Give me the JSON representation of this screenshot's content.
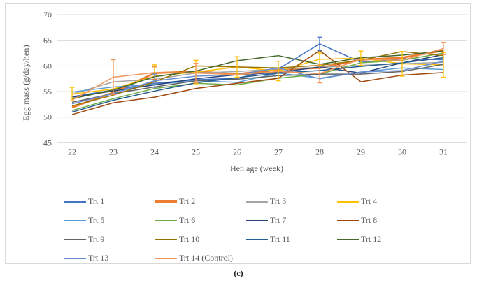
{
  "figure": {
    "caption": "(c)"
  },
  "chart_data": {
    "type": "line",
    "title": "",
    "xlabel": "Hen age (week)",
    "ylabel": "Egg mass (g/day/hen)",
    "x": [
      22,
      23,
      24,
      25,
      26,
      27,
      28,
      29,
      30,
      31
    ],
    "ylim": [
      45,
      70
    ],
    "ytick_step": 5,
    "yticks": [
      45,
      50,
      55,
      60,
      65,
      70
    ],
    "grid": "horizontal",
    "legend_position": "bottom",
    "axis_text_color": "#595959",
    "gridline_color": "#d9d9d9",
    "series": [
      {
        "name": "Trt 1",
        "color": "#4472C4",
        "thick": false,
        "values": [
          54.0,
          55.3,
          56.6,
          57.3,
          57.6,
          59.4,
          64.3,
          60.7,
          61.4,
          61.2
        ]
      },
      {
        "name": "Trt 2",
        "color": "#ED7D31",
        "thick": true,
        "values": [
          51.9,
          54.8,
          58.6,
          58.9,
          58.4,
          59.3,
          59.6,
          61.2,
          61.6,
          63.0
        ]
      },
      {
        "name": "Trt 3",
        "color": "#A5A5A5",
        "thick": false,
        "values": [
          54.5,
          56.9,
          57.4,
          58.6,
          58.9,
          59.4,
          59.7,
          60.1,
          60.4,
          60.7
        ]
      },
      {
        "name": "Trt 4",
        "color": "#FFC000",
        "thick": false,
        "values": [
          54.5,
          55.5,
          58.0,
          58.8,
          59.8,
          59.0,
          61.3,
          61.5,
          60.4,
          60.2
        ]
      },
      {
        "name": "Trt 5",
        "color": "#5B9BD5",
        "thick": false,
        "values": [
          54.9,
          55.9,
          56.4,
          57.1,
          56.8,
          58.6,
          57.6,
          58.8,
          59.6,
          59.3
        ]
      },
      {
        "name": "Trt 6",
        "color": "#70AD47",
        "thick": false,
        "values": [
          51.3,
          53.6,
          55.6,
          56.6,
          56.3,
          57.6,
          58.4,
          60.6,
          61.1,
          62.5
        ]
      },
      {
        "name": "Trt 7",
        "color": "#264478",
        "thick": false,
        "values": [
          53.9,
          55.1,
          56.3,
          57.5,
          58.3,
          58.7,
          59.8,
          58.6,
          60.6,
          62.2
        ]
      },
      {
        "name": "Trt 8",
        "color": "#9E480E",
        "thick": false,
        "values": [
          50.5,
          52.8,
          53.9,
          55.6,
          56.6,
          57.6,
          63.0,
          56.9,
          58.2,
          58.7
        ]
      },
      {
        "name": "Trt 9",
        "color": "#636363",
        "thick": false,
        "values": [
          52.9,
          54.6,
          55.9,
          57.1,
          57.4,
          58.1,
          58.4,
          58.4,
          58.9,
          60.3
        ]
      },
      {
        "name": "Trt 10",
        "color": "#997300",
        "thick": false,
        "values": [
          52.2,
          54.3,
          56.9,
          60.0,
          59.8,
          59.6,
          60.1,
          61.1,
          62.8,
          62.0
        ]
      },
      {
        "name": "Trt 11",
        "color": "#255E91",
        "thick": false,
        "values": [
          51.0,
          53.3,
          55.1,
          56.7,
          57.7,
          58.6,
          59.1,
          59.9,
          60.6,
          61.6
        ]
      },
      {
        "name": "Trt 12",
        "color": "#43682B",
        "thick": false,
        "values": [
          53.6,
          55.3,
          57.9,
          59.0,
          61.0,
          62.0,
          60.3,
          61.6,
          62.1,
          62.9
        ]
      },
      {
        "name": "Trt 13",
        "color": "#698ED0",
        "thick": false,
        "values": [
          52.6,
          54.6,
          57.1,
          58.0,
          58.3,
          59.6,
          57.5,
          58.8,
          59.1,
          60.9
        ]
      },
      {
        "name": "Trt 14 (Control)",
        "color": "#F1975A",
        "thick": false,
        "values": [
          53.3,
          57.8,
          58.7,
          58.6,
          58.3,
          58.9,
          58.5,
          61.3,
          61.1,
          63.4
        ]
      }
    ],
    "error_bars": [
      {
        "series": "Trt 4",
        "week": 22,
        "delta": 1.3
      },
      {
        "series": "Trt 14 (Control)",
        "week": 23,
        "delta": 3.4
      },
      {
        "series": "Trt 2",
        "week": 24,
        "delta": 1.2
      },
      {
        "series": "Trt 4",
        "week": 24,
        "delta": 2.2
      },
      {
        "series": "Trt 13",
        "week": 24,
        "delta": 1.3
      },
      {
        "series": "Trt 4",
        "week": 25,
        "delta": 2.3
      },
      {
        "series": "Trt 14 (Control)",
        "week": 25,
        "delta": 1.9
      },
      {
        "series": "Trt 4",
        "week": 26,
        "delta": 2.0
      },
      {
        "series": "Trt 4",
        "week": 27,
        "delta": 1.9
      },
      {
        "series": "Trt 1",
        "week": 28,
        "delta": 1.3
      },
      {
        "series": "Trt 4",
        "week": 28,
        "delta": 1.2
      },
      {
        "series": "Trt 14 (Control)",
        "week": 28,
        "delta": 1.8
      },
      {
        "series": "Trt 4",
        "week": 29,
        "delta": 1.4
      },
      {
        "series": "Trt 4",
        "week": 30,
        "delta": 2.4
      },
      {
        "series": "Trt 4",
        "week": 31,
        "delta": 2.4
      },
      {
        "series": "Trt 14 (Control)",
        "week": 31,
        "delta": 1.2
      }
    ]
  }
}
